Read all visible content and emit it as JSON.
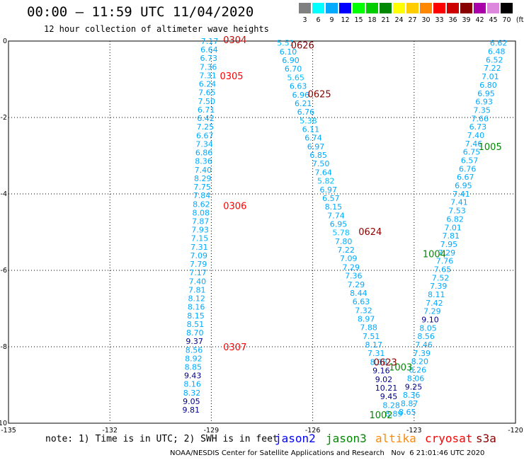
{
  "header": {
    "title": "00:00 — 11:59 UTC 11/04/2020",
    "subtitle": "12 hour collection of altimeter wave heights"
  },
  "color_scale": {
    "unit": "(ft)",
    "bins": [
      {
        "label": "3",
        "color": "#808080"
      },
      {
        "label": "6",
        "color": "#00ffff"
      },
      {
        "label": "9",
        "color": "#00aaff"
      },
      {
        "label": "12",
        "color": "#0000ff"
      },
      {
        "label": "15",
        "color": "#00ff00"
      },
      {
        "label": "18",
        "color": "#00cc00"
      },
      {
        "label": "21",
        "color": "#008800"
      },
      {
        "label": "24",
        "color": "#ffff00"
      },
      {
        "label": "27",
        "color": "#ffcc00"
      },
      {
        "label": "30",
        "color": "#ff8800"
      },
      {
        "label": "33",
        "color": "#ff0000"
      },
      {
        "label": "36",
        "color": "#cc0000"
      },
      {
        "label": "39",
        "color": "#880000"
      },
      {
        "label": "42",
        "color": "#aa00aa"
      },
      {
        "label": "45",
        "color": "#dd88dd"
      },
      {
        "label": "70",
        "color": "#000000"
      }
    ]
  },
  "map": {
    "lon_ticks": [
      "-135",
      "-132",
      "-129",
      "-126",
      "-123",
      "-120"
    ],
    "lat_ticks": [
      "0",
      "-2",
      "-4",
      "-6",
      "-8",
      "-10"
    ],
    "lon_range": [
      -135,
      -120
    ],
    "lat_range": [
      -10,
      0
    ]
  },
  "colors": {
    "cyan": "#00bfff",
    "sky": "#00aaff",
    "dark_cyan": "#00a0c8",
    "navy": "#00008b",
    "red": "#ff0000",
    "dark_red": "#880000",
    "green": "#008800"
  },
  "tracks": [
    {
      "name": "track-a",
      "color": "#00aaff",
      "start": [
        -129.05,
        0
      ],
      "end": [
        -129.6,
        -9.65
      ],
      "values": [
        "7.17",
        "6.64",
        "6.73",
        "7.36",
        "7.31",
        "6.24",
        "7.65",
        "7.50",
        "6.71",
        "6.42",
        "7.25",
        "6.67",
        "7.34",
        "6.86",
        "8.36",
        "7.40",
        "8.29",
        "7.75",
        "7.84",
        "8.62",
        "8.08",
        "7.87",
        "7.93",
        "7.15",
        "7.31",
        "7.09",
        "7.79",
        "7.17",
        "7.40",
        "7.81",
        "8.12",
        "8.16",
        "8.15",
        "8.51",
        "8.70",
        "9.37",
        "8.56",
        "8.92",
        "8.85",
        "9.43",
        "8.16",
        "8.32",
        "9.05",
        "9.81"
      ]
    },
    {
      "name": "track-b",
      "color": "#00aaff",
      "start": [
        -126.8,
        -0.05
      ],
      "end": [
        -123.6,
        -9.75
      ],
      "values": [
        "5.51",
        "6.10",
        "6.90",
        "6.70",
        "5.65",
        "6.63",
        "6.96",
        "6.21",
        "6.76",
        "5.38",
        "6.11",
        "6.74",
        "6.97",
        "6.85",
        "7.50",
        "7.64",
        "5.82",
        "6.97",
        "6.57",
        "8.15",
        "7.74",
        "6.95",
        "5.78",
        "7.80",
        "7.22",
        "7.09",
        "7.29",
        "7.36",
        "7.29",
        "8.44",
        "6.63",
        "7.32",
        "8.97",
        "7.88",
        "7.51",
        "8.17",
        "7.31",
        "8.38",
        "9.16",
        "9.02",
        "10.21",
        "9.45",
        "8.28",
        "8.89"
      ]
    },
    {
      "name": "track-c",
      "color": "#00aaff",
      "start": [
        -120.5,
        -0.05
      ],
      "end": [
        -123.2,
        -9.7
      ],
      "values": [
        "6.62",
        "6.48",
        "6.52",
        "7.22",
        "7.01",
        "6.80",
        "6.95",
        "6.93",
        "7.35",
        "7.66",
        "6.73",
        "7.40",
        "7.46",
        "6.75",
        "6.57",
        "6.76",
        "6.67",
        "6.95",
        "7.41",
        "7.41",
        "7.53",
        "6.82",
        "7.01",
        "7.81",
        "7.95",
        "7.29",
        "7.76",
        "7.65",
        "7.52",
        "7.39",
        "8.11",
        "7.42",
        "7.29",
        "9.10",
        "8.05",
        "8.56",
        "7.46",
        "7.39",
        "8.20",
        "8.26",
        "8.06",
        "9.25",
        "8.36",
        "8.87",
        "8.65"
      ]
    }
  ],
  "time_labels": [
    {
      "text": "0304",
      "color": "#cc0000",
      "at": [
        -128.3,
        0.02
      ]
    },
    {
      "text": "0305",
      "color": "#ff0000",
      "at": [
        -128.4,
        -0.93
      ]
    },
    {
      "text": "0306",
      "color": "#ff0000",
      "at": [
        -128.3,
        -4.32
      ]
    },
    {
      "text": "0307",
      "color": "#ff0000",
      "at": [
        -128.3,
        -8.02
      ]
    },
    {
      "text": "0626",
      "color": "#880000",
      "at": [
        -126.3,
        -0.12
      ]
    },
    {
      "text": "0625",
      "color": "#880000",
      "at": [
        -125.8,
        -1.4
      ]
    },
    {
      "text": "0624",
      "color": "#880000",
      "at": [
        -124.3,
        -5.0
      ]
    },
    {
      "text": "0623",
      "color": "#880000",
      "at": [
        -123.85,
        -8.42
      ]
    },
    {
      "text": "1005",
      "color": "#008800",
      "at": [
        -120.75,
        -2.78
      ]
    },
    {
      "text": "1004",
      "color": "#008800",
      "at": [
        -122.4,
        -5.58
      ]
    },
    {
      "text": "1003",
      "color": "#008800",
      "at": [
        -123.4,
        -8.55
      ]
    },
    {
      "text": "1002",
      "color": "#008800",
      "at": [
        -123.98,
        -9.8
      ]
    }
  ],
  "note": "note: 1) Time is in UTC; 2) SWH is in feet",
  "satellites": [
    {
      "name": "jason2",
      "color": "#0000ff"
    },
    {
      "name": "jason3",
      "color": "#008800"
    },
    {
      "name": "altika",
      "color": "#ff8800"
    },
    {
      "name": "cryosat",
      "color": "#ff0000"
    },
    {
      "name": "s3a",
      "color": "#880000"
    }
  ],
  "footer": "NOAA/NESDIS Center for Satellite Applications and Research   Nov  6 21:01:46 UTC 2020"
}
